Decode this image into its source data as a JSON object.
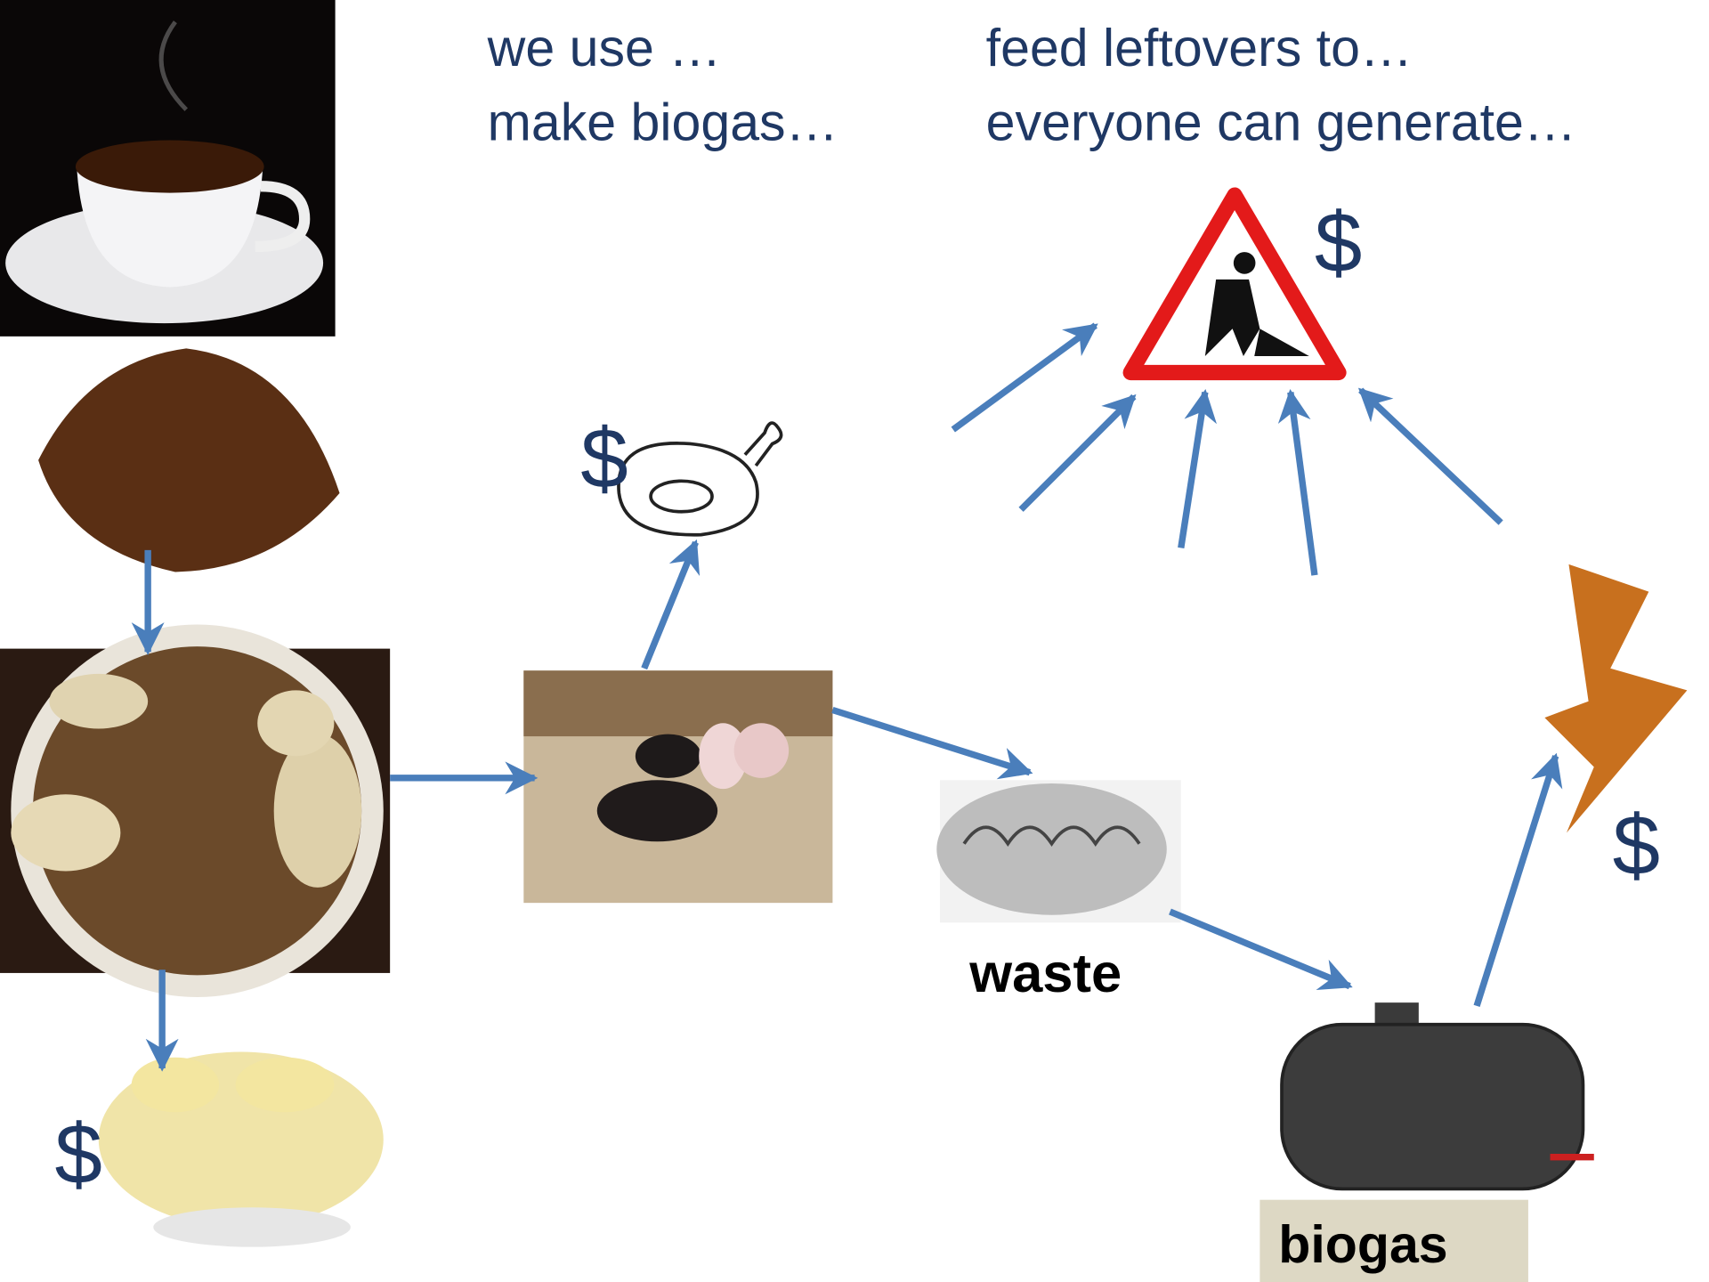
{
  "captions": {
    "left_line1": "we use …",
    "left_line2": "make biogas…",
    "right_line1": "feed leftovers to…",
    "right_line2": "everyone can generate…"
  },
  "nodes": {
    "money_infrastructure": "$",
    "money_meat": "$",
    "money_electricity": "$",
    "money_mushrooms": "$",
    "waste_label": "waste",
    "biogas_label": "biogas"
  }
}
